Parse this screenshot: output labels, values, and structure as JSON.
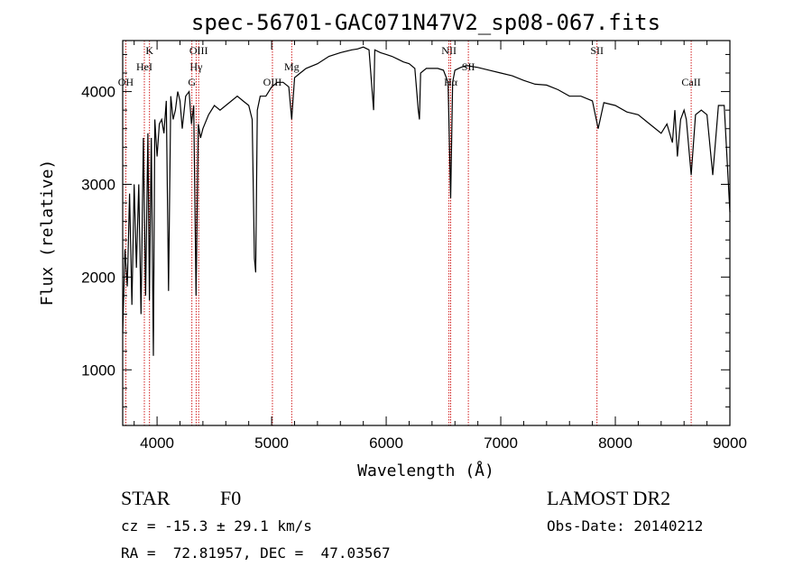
{
  "chart_data": {
    "type": "line",
    "title": "spec-56701-GAC071N47V2_sp08-067.fits",
    "xlabel": "Wavelength (Å)",
    "ylabel": "Flux (relative)",
    "xlim": [
      3700,
      9000
    ],
    "ylim": [
      400,
      4550
    ],
    "xticks": [
      4000,
      5000,
      6000,
      7000,
      8000,
      9000
    ],
    "yticks": [
      1000,
      2000,
      3000,
      4000
    ],
    "grid": false,
    "legend": "none",
    "line_color": "#000000",
    "marker_color": "#cc0000",
    "series": [
      {
        "x": [
          3700,
          3720,
          3740,
          3760,
          3780,
          3800,
          3820,
          3840,
          3860,
          3880,
          3900,
          3920,
          3933,
          3950,
          3968,
          3980,
          4000,
          4020,
          4040,
          4060,
          4080,
          4100,
          4120,
          4140,
          4160,
          4180,
          4200,
          4220,
          4250,
          4280,
          4300,
          4320,
          4340,
          4360,
          4380,
          4400,
          4450,
          4500,
          4550,
          4600,
          4650,
          4700,
          4750,
          4800,
          4830,
          4850,
          4861,
          4875,
          4900,
          4950,
          5000,
          5050,
          5100,
          5150,
          5175,
          5200,
          5250,
          5300,
          5400,
          5500,
          5600,
          5700,
          5750,
          5800,
          5850,
          5890,
          5900,
          5950,
          6000,
          6050,
          6100,
          6150,
          6200,
          6250,
          6280,
          6290,
          6300,
          6350,
          6400,
          6450,
          6500,
          6540,
          6563,
          6580,
          6600,
          6650,
          6700,
          6800,
          6900,
          7000,
          7100,
          7200,
          7300,
          7400,
          7500,
          7600,
          7700,
          7800,
          7850,
          7900,
          8000,
          8100,
          8200,
          8300,
          8400,
          8450,
          8498,
          8520,
          8542,
          8570,
          8600,
          8620,
          8662,
          8700,
          8750,
          8800,
          8850,
          8900,
          8950,
          9000
        ],
        "y": [
          1400,
          2300,
          1900,
          2900,
          1700,
          3000,
          2100,
          3000,
          1600,
          3500,
          1800,
          3550,
          1750,
          3500,
          1150,
          3700,
          3300,
          3650,
          3700,
          3550,
          3900,
          1850,
          3950,
          3700,
          3800,
          4000,
          3900,
          3600,
          3950,
          4000,
          3650,
          3850,
          1800,
          3650,
          3500,
          3600,
          3750,
          3850,
          3800,
          3850,
          3900,
          3950,
          3900,
          3850,
          3700,
          2200,
          2050,
          3800,
          3950,
          3950,
          4050,
          4100,
          4100,
          4050,
          3700,
          4150,
          4200,
          4250,
          4300,
          4380,
          4420,
          4450,
          4460,
          4480,
          4450,
          3800,
          4450,
          4420,
          4400,
          4380,
          4350,
          4320,
          4300,
          4250,
          3800,
          3700,
          4200,
          4250,
          4250,
          4250,
          4230,
          4100,
          2850,
          4100,
          4230,
          4260,
          4280,
          4260,
          4230,
          4200,
          4170,
          4120,
          4080,
          4070,
          4020,
          3950,
          3950,
          3900,
          3600,
          3880,
          3850,
          3780,
          3750,
          3650,
          3550,
          3650,
          3450,
          3800,
          3300,
          3700,
          3800,
          3700,
          3100,
          3750,
          3800,
          3750,
          3100,
          3850,
          3850,
          2700
        ]
      }
    ],
    "line_markers": [
      {
        "label": "OH",
        "x": 3727,
        "tier": "low"
      },
      {
        "label": "HeI",
        "x": 3889,
        "tier": "mid"
      },
      {
        "label": "K",
        "x": 3934,
        "tier": "high"
      },
      {
        "label": "Hγ",
        "x": 4341,
        "tier": "mid"
      },
      {
        "label": "OIII",
        "x": 4363,
        "tier": "high"
      },
      {
        "label": "G",
        "x": 4304,
        "tier": "low"
      },
      {
        "label": "OIII",
        "x": 5007,
        "tier": "low"
      },
      {
        "label": "Mg",
        "x": 5175,
        "tier": "mid"
      },
      {
        "label": "NII",
        "x": 6548,
        "tier": "high"
      },
      {
        "label": "Hα",
        "x": 6563,
        "tier": "low"
      },
      {
        "label": "SII",
        "x": 6717,
        "tier": "mid"
      },
      {
        "label": "SII",
        "x": 7840,
        "tier": "high"
      },
      {
        "label": "CaII",
        "x": 8662,
        "tier": "low"
      }
    ]
  },
  "info": {
    "object_class": "STAR",
    "subclass": "F0",
    "survey": "LAMOST DR2",
    "cz": "cz = -15.3 ± 29.1 km/s",
    "obs_date": "Obs-Date: 20140212",
    "coords": "RA =  72.81957, DEC =  47.03567"
  }
}
